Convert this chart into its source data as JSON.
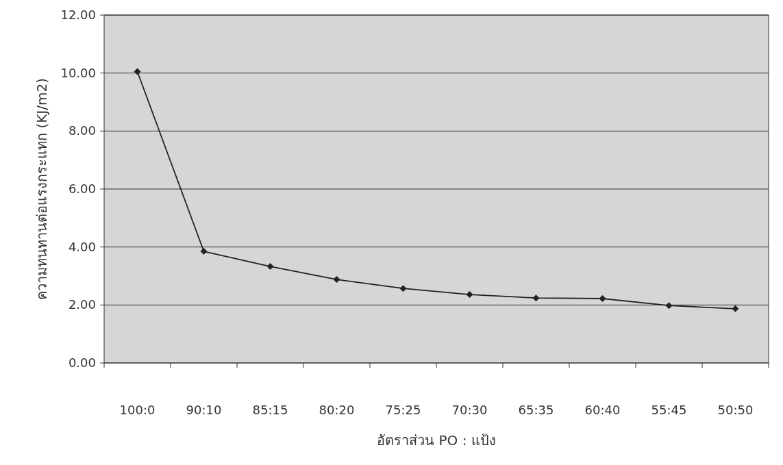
{
  "chart_data": {
    "type": "line",
    "xlabel": "อัตราส่วน PO : แป้ง",
    "ylabel": "ความทนทานต่อแรงกระแทก (KJ/m2)",
    "categories": [
      "100:0",
      "90:10",
      "85:15",
      "80:20",
      "75:25",
      "70:30",
      "65:35",
      "60:40",
      "55:45",
      "50:50"
    ],
    "series": [
      {
        "color": "#222222",
        "values": [
          10.05,
          3.85,
          3.33,
          2.88,
          2.57,
          2.36,
          2.24,
          2.22,
          1.98,
          1.87
        ]
      }
    ],
    "ylim": [
      0,
      12
    ],
    "yticks": [
      {
        "value": 0,
        "label": "0.00"
      },
      {
        "value": 2,
        "label": "2.00"
      },
      {
        "value": 4,
        "label": "4.00"
      },
      {
        "value": 6,
        "label": "6.00"
      },
      {
        "value": 8,
        "label": "8.00"
      },
      {
        "value": 10,
        "label": "10.00"
      },
      {
        "value": 12,
        "label": "12.00"
      }
    ],
    "grid": "y",
    "marker": "diamond",
    "line_style": "solid"
  }
}
